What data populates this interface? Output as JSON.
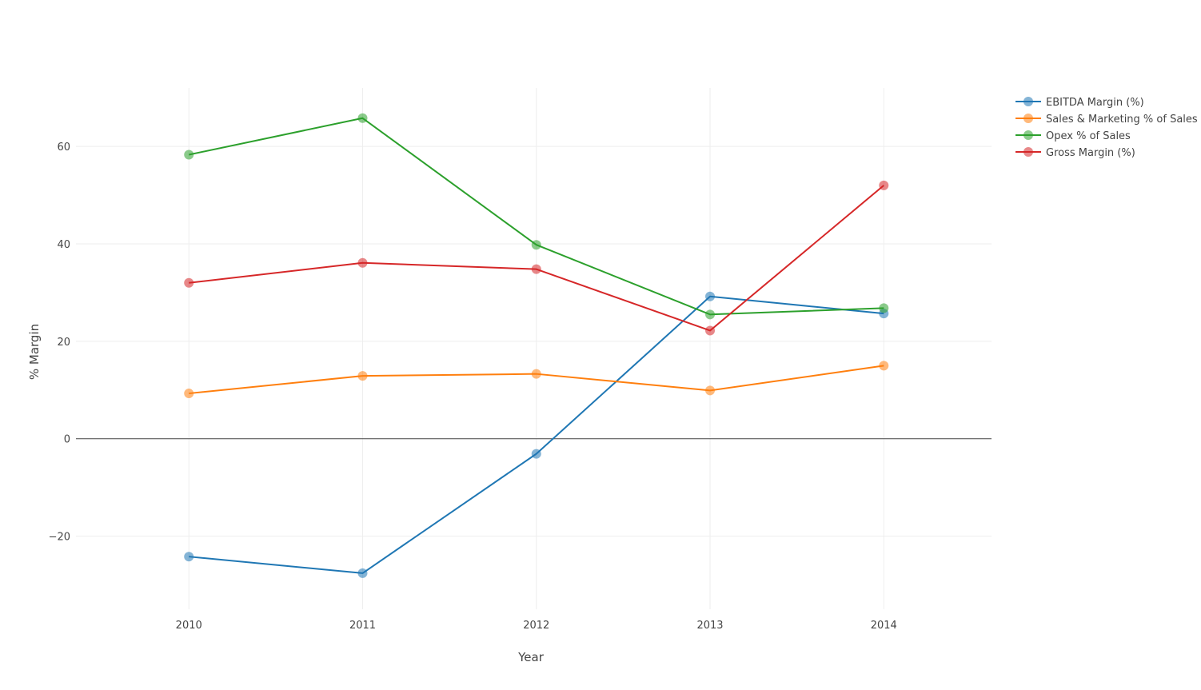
{
  "chart_data": {
    "type": "line",
    "title": "",
    "xlabel": "Year",
    "ylabel": "% Margin",
    "x": [
      2010,
      2011,
      2012,
      2013,
      2014
    ],
    "x_tick_labels": [
      "2010",
      "2011",
      "2012",
      "2013",
      "2014"
    ],
    "xlim": [
      2009.35,
      2014.62
    ],
    "ylim": [
      -35,
      72
    ],
    "y_ticks": [
      -20,
      0,
      20,
      40,
      60
    ],
    "y_tick_labels": [
      "−20",
      "0",
      "20",
      "40",
      "60"
    ],
    "grid": true,
    "zero_line": true,
    "legend_position": "top-right",
    "series": [
      {
        "name": "EBITDA Margin (%)",
        "color": "#1f77b4",
        "values": [
          -24.2,
          -27.6,
          -3.1,
          29.2,
          25.7
        ]
      },
      {
        "name": "Sales & Marketing % of Sales",
        "color": "#ff7f0e",
        "values": [
          9.3,
          12.9,
          13.3,
          9.9,
          15.0
        ]
      },
      {
        "name": "Opex % of Sales",
        "color": "#2ca02c",
        "values": [
          58.3,
          65.8,
          39.8,
          25.5,
          26.8
        ]
      },
      {
        "name": "Gross Margin (%)",
        "color": "#d62728",
        "values": [
          32.0,
          36.1,
          34.8,
          22.2,
          52.0
        ]
      }
    ]
  }
}
